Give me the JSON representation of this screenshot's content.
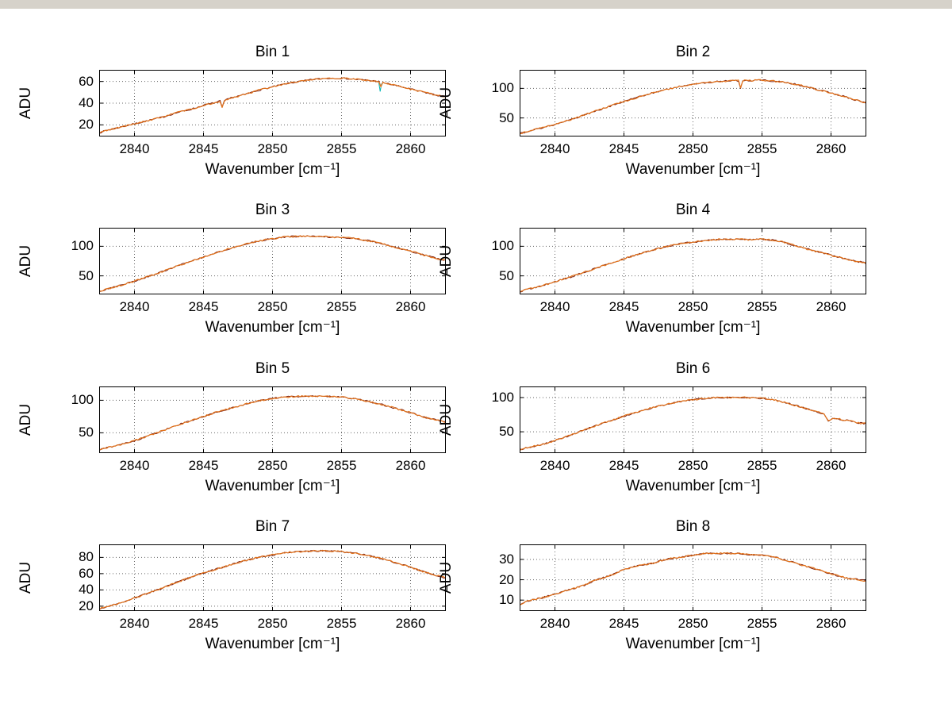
{
  "figure": {
    "background": "#ffffff",
    "top_band_color": "#d6d2ca",
    "line_color": "#e2731c",
    "line_color_dark": "#7e1f0c",
    "grid_color": "#666666",
    "axis_color": "#000000",
    "xlabel": "Wavenumber [cm⁻¹]",
    "ylabel": "ADU",
    "xticks": [
      2840,
      2845,
      2850,
      2855,
      2860
    ],
    "xlim": [
      2837.5,
      2862.5
    ]
  },
  "chart_data": [
    {
      "type": "line",
      "title": "Bin 1",
      "xlabel": "Wavenumber [cm⁻¹]",
      "ylabel": "ADU",
      "xlim": [
        2837.5,
        2862.5
      ],
      "ylim": [
        10,
        70
      ],
      "xticks": [
        2840,
        2845,
        2850,
        2855,
        2860
      ],
      "yticks": [
        20,
        40,
        60
      ],
      "x": [
        2837.5,
        2838,
        2839,
        2840,
        2841,
        2842,
        2843,
        2844,
        2845,
        2846,
        2846.2,
        2846.35,
        2846.5,
        2847,
        2848,
        2849,
        2850,
        2851,
        2852,
        2853,
        2854,
        2854.5,
        2855,
        2856,
        2857,
        2857.7,
        2857.85,
        2858,
        2859,
        2860,
        2861,
        2862,
        2862.5
      ],
      "y": [
        13,
        15,
        18,
        21,
        24,
        27,
        31,
        34,
        38,
        41,
        42,
        36,
        42,
        45,
        48,
        52,
        55,
        58,
        60,
        62,
        63,
        63,
        63,
        62,
        61,
        60,
        55,
        59,
        56,
        53,
        50,
        47,
        46
      ],
      "extra_series": [
        {
          "color": "#00b4b4",
          "x": [
            2857.7,
            2857.8,
            2857.9
          ],
          "y": [
            59,
            51,
            58
          ]
        }
      ]
    },
    {
      "type": "line",
      "title": "Bin 2",
      "xlabel": "Wavenumber [cm⁻¹]",
      "ylabel": "ADU",
      "xlim": [
        2837.5,
        2862.5
      ],
      "ylim": [
        20,
        130
      ],
      "xticks": [
        2840,
        2845,
        2850,
        2855,
        2860
      ],
      "yticks": [
        50,
        100
      ],
      "x": [
        2837.5,
        2838,
        2839,
        2840,
        2841,
        2842,
        2843,
        2844,
        2845,
        2846,
        2847,
        2848,
        2849,
        2850,
        2851,
        2852,
        2853,
        2853.3,
        2853.45,
        2853.6,
        2854,
        2855,
        2856,
        2857,
        2858,
        2859,
        2860,
        2861,
        2862,
        2862.5
      ],
      "y": [
        24,
        27,
        33,
        39,
        46,
        54,
        62,
        70,
        78,
        85,
        92,
        98,
        103,
        107,
        110,
        112,
        113,
        113,
        100,
        113,
        113,
        114,
        112,
        109,
        104,
        98,
        92,
        86,
        79,
        76
      ]
    },
    {
      "type": "line",
      "title": "Bin 3",
      "xlabel": "Wavenumber [cm⁻¹]",
      "ylabel": "ADU",
      "xlim": [
        2837.5,
        2862.5
      ],
      "ylim": [
        20,
        130
      ],
      "xticks": [
        2840,
        2845,
        2850,
        2855,
        2860
      ],
      "yticks": [
        50,
        100
      ],
      "x": [
        2837.5,
        2838,
        2839,
        2840,
        2841,
        2842,
        2843,
        2844,
        2845,
        2846,
        2847,
        2848,
        2849,
        2850,
        2851,
        2852,
        2853,
        2854,
        2855,
        2856,
        2857,
        2858,
        2859,
        2860,
        2861,
        2862,
        2862.5
      ],
      "y": [
        24,
        28,
        34,
        41,
        49,
        57,
        66,
        74,
        82,
        90,
        97,
        104,
        109,
        113,
        116,
        117,
        117,
        116,
        115,
        113,
        109,
        104,
        98,
        92,
        85,
        79,
        76
      ]
    },
    {
      "type": "line",
      "title": "Bin 4",
      "xlabel": "Wavenumber [cm⁻¹]",
      "ylabel": "ADU",
      "xlim": [
        2837.5,
        2862.5
      ],
      "ylim": [
        20,
        130
      ],
      "xticks": [
        2840,
        2845,
        2850,
        2855,
        2860
      ],
      "yticks": [
        50,
        100
      ],
      "x": [
        2837.5,
        2838,
        2839,
        2840,
        2841,
        2842,
        2843,
        2844,
        2845,
        2846,
        2847,
        2848,
        2849,
        2850,
        2851,
        2852,
        2853,
        2854,
        2855,
        2856,
        2857,
        2858,
        2859,
        2860,
        2861,
        2862,
        2862.5
      ],
      "y": [
        24,
        27,
        33,
        40,
        47,
        55,
        63,
        71,
        79,
        86,
        93,
        99,
        104,
        107,
        110,
        112,
        112,
        111,
        112,
        110,
        104,
        97,
        91,
        85,
        79,
        74,
        72
      ]
    },
    {
      "type": "line",
      "title": "Bin 5",
      "xlabel": "Wavenumber [cm⁻¹]",
      "ylabel": "ADU",
      "xlim": [
        2837.5,
        2862.5
      ],
      "ylim": [
        20,
        120
      ],
      "xticks": [
        2840,
        2845,
        2850,
        2855,
        2860
      ],
      "yticks": [
        50,
        100
      ],
      "x": [
        2837.5,
        2838,
        2839,
        2840,
        2841,
        2842,
        2843,
        2844,
        2845,
        2846,
        2847,
        2848,
        2849,
        2850,
        2851,
        2852,
        2853,
        2854,
        2855,
        2856,
        2857,
        2858,
        2859,
        2860,
        2861,
        2862,
        2862.5
      ],
      "y": [
        24,
        27,
        32,
        38,
        45,
        53,
        61,
        68,
        75,
        82,
        88,
        94,
        99,
        103,
        105,
        106,
        106,
        106,
        105,
        102,
        98,
        93,
        87,
        81,
        74,
        69,
        67
      ]
    },
    {
      "type": "line",
      "title": "Bin 6",
      "xlabel": "Wavenumber [cm⁻¹]",
      "ylabel": "ADU",
      "xlim": [
        2837.5,
        2862.5
      ],
      "ylim": [
        20,
        115
      ],
      "xticks": [
        2840,
        2845,
        2850,
        2855,
        2860
      ],
      "yticks": [
        50,
        100
      ],
      "x": [
        2837.5,
        2838,
        2839,
        2840,
        2841,
        2842,
        2843,
        2844,
        2845,
        2846,
        2847,
        2848,
        2849,
        2850,
        2851,
        2852,
        2853,
        2854,
        2855,
        2856,
        2857,
        2858,
        2859,
        2859.5,
        2859.8,
        2860.1,
        2860.5,
        2861,
        2862,
        2862.5
      ],
      "y": [
        24,
        27,
        31,
        37,
        44,
        52,
        59,
        66,
        73,
        79,
        85,
        90,
        94,
        97,
        99,
        100,
        100,
        100,
        99,
        96,
        91,
        85,
        79,
        76,
        66,
        70,
        69,
        67,
        63,
        62
      ]
    },
    {
      "type": "line",
      "title": "Bin 7",
      "xlabel": "Wavenumber [cm⁻¹]",
      "ylabel": "ADU",
      "xlim": [
        2837.5,
        2862.5
      ],
      "ylim": [
        15,
        95
      ],
      "xticks": [
        2840,
        2845,
        2850,
        2855,
        2860
      ],
      "yticks": [
        20,
        40,
        60,
        80
      ],
      "x": [
        2837.5,
        2838,
        2839,
        2840,
        2841,
        2842,
        2843,
        2844,
        2845,
        2846,
        2847,
        2848,
        2849,
        2850,
        2851,
        2852,
        2853,
        2854,
        2855,
        2856,
        2857,
        2858,
        2859,
        2860,
        2861,
        2862,
        2862.5
      ],
      "y": [
        17,
        20,
        24,
        30,
        36,
        42,
        49,
        55,
        61,
        66,
        71,
        76,
        80,
        83,
        86,
        87,
        88,
        88,
        87,
        85,
        82,
        78,
        73,
        68,
        62,
        57,
        55
      ]
    },
    {
      "type": "line",
      "title": "Bin 8",
      "xlabel": "Wavenumber [cm⁻¹]",
      "ylabel": "ADU",
      "xlim": [
        2837.5,
        2862.5
      ],
      "ylim": [
        5,
        37
      ],
      "xticks": [
        2840,
        2845,
        2850,
        2855,
        2860
      ],
      "yticks": [
        10,
        20,
        30
      ],
      "x": [
        2837.5,
        2838,
        2839,
        2840,
        2841,
        2842,
        2843,
        2844,
        2845,
        2846,
        2847,
        2848,
        2849,
        2850,
        2851,
        2852,
        2853,
        2854,
        2855,
        2856,
        2857,
        2858,
        2859,
        2860,
        2861,
        2862,
        2862.5
      ],
      "y": [
        8,
        9.5,
        11,
        13,
        15,
        17,
        20,
        22,
        25,
        27,
        28,
        30,
        31,
        32,
        33,
        33,
        33,
        32.5,
        32,
        31,
        29,
        27,
        25,
        23,
        21,
        20,
        19.5
      ]
    }
  ]
}
